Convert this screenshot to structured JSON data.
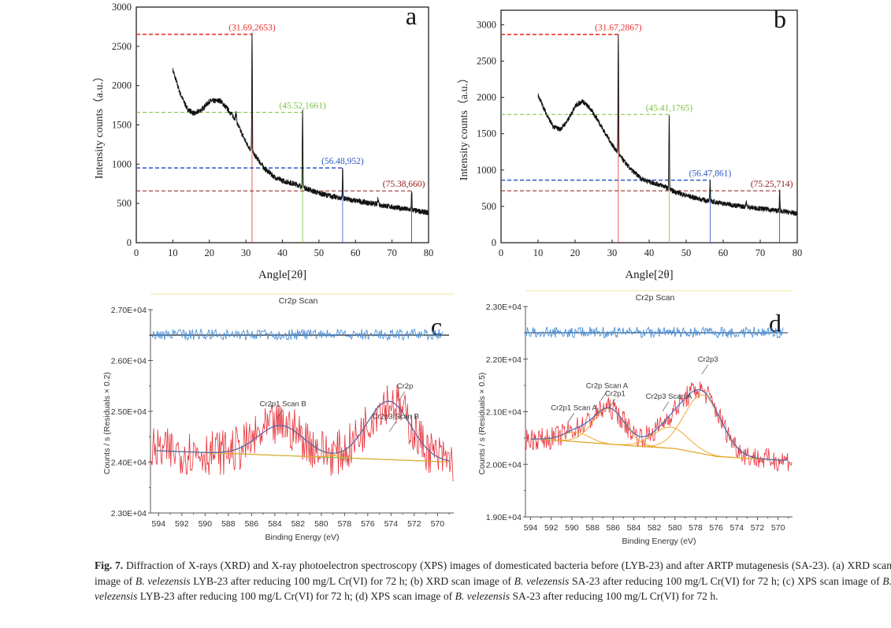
{
  "chart_data": [
    {
      "panel": "a",
      "type": "line",
      "xlabel": "Angle[2θ]",
      "ylabel": "Intensity counts（a.u.）",
      "xlim": [
        0,
        80
      ],
      "ylim": [
        0,
        3000
      ],
      "xticks": [
        "0",
        "10",
        "20",
        "30",
        "40",
        "50",
        "60",
        "70",
        "80"
      ],
      "yticks": [
        "0",
        "500",
        "1000",
        "1500",
        "2000",
        "2500",
        "3000"
      ],
      "grid": false,
      "profile": [
        [
          10,
          2200
        ],
        [
          12,
          1900
        ],
        [
          14,
          1700
        ],
        [
          16,
          1640
        ],
        [
          18,
          1700
        ],
        [
          20,
          1800
        ],
        [
          23,
          1810
        ],
        [
          25,
          1700
        ],
        [
          27,
          1580
        ],
        [
          30,
          1280
        ],
        [
          31.5,
          1170
        ],
        [
          33,
          1080
        ],
        [
          35,
          950
        ],
        [
          38,
          830
        ],
        [
          40,
          790
        ],
        [
          44,
          740
        ],
        [
          46,
          700
        ],
        [
          50,
          630
        ],
        [
          55,
          575
        ],
        [
          60,
          535
        ],
        [
          65,
          495
        ],
        [
          70,
          455
        ],
        [
          75,
          420
        ],
        [
          80,
          380
        ]
      ],
      "peaks": [
        {
          "x": 31.69,
          "y": 2653,
          "label": "(31.69,2653)",
          "color": "#e8322d"
        },
        {
          "x": 45.52,
          "y": 1661,
          "label": "(45.52,1661)",
          "color": "#7cc242"
        },
        {
          "x": 56.48,
          "y": 952,
          "label": "(56.48,952)",
          "color": "#2a56c6"
        },
        {
          "x": 75.38,
          "y": 660,
          "label": "(75.38,660)",
          "color": "#8b1a1a"
        }
      ],
      "minor_peaks": [
        [
          27.3,
          1650
        ],
        [
          66.2,
          560
        ]
      ]
    },
    {
      "panel": "b",
      "type": "line",
      "xlabel": "Angle[2θ]",
      "ylabel": "Intensity counts（a.u.）",
      "xlim": [
        0,
        80
      ],
      "ylim": [
        0,
        3200
      ],
      "xticks": [
        "0",
        "10",
        "20",
        "30",
        "40",
        "50",
        "60",
        "70",
        "80"
      ],
      "yticks": [
        "0",
        "500",
        "1000",
        "1500",
        "2000",
        "2500",
        "3000"
      ],
      "grid": false,
      "profile": [
        [
          10,
          2030
        ],
        [
          12,
          1800
        ],
        [
          14,
          1600
        ],
        [
          16,
          1560
        ],
        [
          18,
          1680
        ],
        [
          20,
          1880
        ],
        [
          22,
          1950
        ],
        [
          24,
          1850
        ],
        [
          26,
          1700
        ],
        [
          28,
          1520
        ],
        [
          30,
          1350
        ],
        [
          32,
          1200
        ],
        [
          35,
          1010
        ],
        [
          38,
          880
        ],
        [
          40,
          840
        ],
        [
          44,
          780
        ],
        [
          46,
          720
        ],
        [
          50,
          650
        ],
        [
          55,
          585
        ],
        [
          60,
          540
        ],
        [
          65,
          500
        ],
        [
          70,
          470
        ],
        [
          75,
          440
        ],
        [
          80,
          400
        ]
      ],
      "peaks": [
        {
          "x": 31.67,
          "y": 2867,
          "label": "(31.67,2867)",
          "color": "#e8322d"
        },
        {
          "x": 45.41,
          "y": 1765,
          "label": "(45.41,1765)",
          "color": "#7cc242"
        },
        {
          "x": 56.47,
          "y": 861,
          "label": "(56.47,861)",
          "color": "#2a56c6"
        },
        {
          "x": 75.25,
          "y": 714,
          "label": "(75.25,714)",
          "color": "#8b1a1a"
        }
      ],
      "minor_peaks": [
        [
          66.2,
          560
        ]
      ]
    },
    {
      "panel": "c",
      "type": "line",
      "title": "Cr2p Scan",
      "xlabel": "Binding Energy (eV)",
      "ylabel": "Counts / s  (Residuals × 0.2)",
      "xlim": [
        594.7,
        568.6
      ],
      "ylim": [
        23000,
        27000
      ],
      "xticks": [
        "594",
        "592",
        "590",
        "588",
        "586",
        "584",
        "582",
        "580",
        "578",
        "576",
        "574",
        "572",
        "570"
      ],
      "yticks": [
        "2.30E+04",
        "2.40E+04",
        "2.50E+04",
        "2.60E+04",
        "2.70E+04"
      ],
      "residual_level": 26500,
      "background": [
        [
          594.7,
          24230
        ],
        [
          568.6,
          24000
        ]
      ],
      "components": [
        {
          "name": "Cr2p1 Scan B",
          "center": 583.5,
          "height": 590,
          "fwhm": 4.6
        },
        {
          "name": "Cr2p3 Scan B",
          "center": 574.2,
          "height": 1150,
          "fwhm": 4.4
        }
      ],
      "annotations": [
        {
          "text": "Cr2p1 Scan B",
          "x": 583.3,
          "y": 25100
        },
        {
          "text": "Cr2p3 Scan B",
          "x": 573.6,
          "y": 24850
        },
        {
          "text": "Cr2p",
          "x": 572.8,
          "y": 25450
        }
      ],
      "colors": {
        "raw": "#e8323a",
        "envelope": "#3f5fb5",
        "component": "#f0a830",
        "background": "#7cc242",
        "residual": "#4a8fd6"
      }
    },
    {
      "panel": "d",
      "type": "line",
      "title": "Cr2p Scan",
      "xlabel": "Binding Energy (eV)",
      "ylabel": "Counts / s  (Residuals × 0.5)",
      "xlim": [
        594.5,
        568.6
      ],
      "ylim": [
        19000,
        23000
      ],
      "xticks": [
        "594",
        "592",
        "590",
        "588",
        "586",
        "584",
        "582",
        "580",
        "578",
        "576",
        "574",
        "572",
        "570"
      ],
      "yticks": [
        "1.90E+04",
        "2.00E+04",
        "2.10E+04",
        "2.20E+04",
        "2.30E+04"
      ],
      "residual_level": 22500,
      "background": [
        [
          593,
          20480
        ],
        [
          584,
          20350
        ],
        [
          580,
          20300
        ],
        [
          576,
          20150
        ],
        [
          570,
          20080
        ]
      ],
      "components": [
        {
          "name": "Cr2p1 Scan A",
          "center": 589.6,
          "height": 180,
          "fwhm": 3.0
        },
        {
          "name": "Cr2p Scan A",
          "center": 586.4,
          "height": 680,
          "fwhm": 3.6
        },
        {
          "name": "Cr2p3 Scan A",
          "center": 580.4,
          "height": 400,
          "fwhm": 4.0
        },
        {
          "name": "Cr2p3",
          "center": 577.3,
          "height": 1120,
          "fwhm": 4.2
        }
      ],
      "annotations": [
        {
          "text": "Cr2p1 Scan A",
          "x": 589.8,
          "y": 21030
        },
        {
          "text": "Cr2p Scan A",
          "x": 586.6,
          "y": 21450
        },
        {
          "text": "Cr2p1",
          "x": 585.8,
          "y": 21300
        },
        {
          "text": "Cr2p3 Scan A",
          "x": 580.6,
          "y": 21250
        },
        {
          "text": "Cr2p3",
          "x": 576.8,
          "y": 21950
        }
      ],
      "colors": {
        "raw": "#e8323a",
        "envelope": "#3f5fb5",
        "component": "#f0a830",
        "background": "#7cc242",
        "residual": "#4a8fd6"
      }
    }
  ],
  "caption": {
    "label": "Fig. 7.",
    "segments": [
      {
        "t": " Diffraction of X-rays (XRD) and X-ray photoelectron spectroscopy (XPS) images of domesticated bacteria before (LYB-23) and after ARTP mutagenesis (SA-23). (a) XRD scan image of ",
        "i": false
      },
      {
        "t": "B. velezensis",
        "i": true
      },
      {
        "t": " LYB-23 after reducing 100 mg/L Cr(VI) for 72 h; (b) XRD scan image of ",
        "i": false
      },
      {
        "t": "B. velezensis",
        "i": true
      },
      {
        "t": " SA-23 after reducing 100 mg/L Cr(VI) for 72 h; (c) XPS scan image of ",
        "i": false
      },
      {
        "t": "B. velezensis",
        "i": true
      },
      {
        "t": " LYB-23 after reducing 100 mg/L Cr(VI) for 72 h; (d) XPS scan image of ",
        "i": false
      },
      {
        "t": "B. velezensis",
        "i": true
      },
      {
        "t": " SA-23 after reducing 100 mg/L Cr(VI) for 72 h.",
        "i": false
      }
    ]
  }
}
